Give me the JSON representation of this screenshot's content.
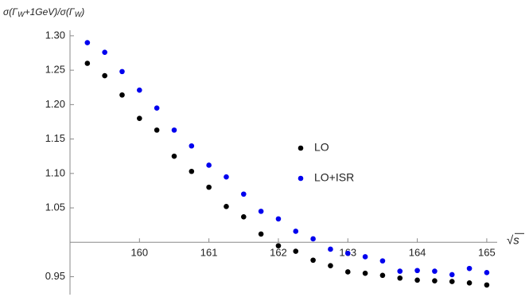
{
  "chart_data": {
    "type": "scatter",
    "ylabel": [
      "σ(Γ",
      "W",
      "+1GeV)/σ(Γ",
      "W",
      ")"
    ],
    "xlabel": "√s",
    "x": [
      159.25,
      159.5,
      159.75,
      160,
      160.25,
      160.5,
      160.75,
      161,
      161.25,
      161.5,
      161.75,
      162,
      162.25,
      162.5,
      162.75,
      163,
      163.25,
      163.5,
      163.75,
      164,
      164.25,
      164.5,
      164.75,
      165
    ],
    "series": [
      {
        "name": "LO",
        "color": "#000000",
        "values": [
          1.26,
          1.242,
          1.214,
          1.18,
          1.163,
          1.125,
          1.103,
          1.08,
          1.052,
          1.037,
          1.012,
          0.995,
          0.987,
          0.974,
          0.966,
          0.957,
          0.955,
          0.952,
          0.948,
          0.945,
          0.944,
          0.943,
          0.941,
          0.938
        ]
      },
      {
        "name": "LO+ISR",
        "color": "#0000ee",
        "values": [
          1.29,
          1.276,
          1.248,
          1.221,
          1.195,
          1.163,
          1.14,
          1.112,
          1.095,
          1.07,
          1.045,
          1.034,
          1.016,
          1.005,
          0.99,
          0.984,
          0.979,
          0.973,
          0.958,
          0.959,
          0.958,
          0.953,
          0.962,
          0.956
        ]
      }
    ],
    "xlim": [
      159,
      165.15
    ],
    "ylim": [
      0.924,
      1.308
    ],
    "xticks": [
      160,
      161,
      162,
      163,
      164,
      165
    ],
    "yticks": [
      {
        "value": 0.95,
        "label": "0.95"
      },
      {
        "value": 1.05,
        "label": "1.05"
      },
      {
        "value": 1.1,
        "label": "1.10"
      },
      {
        "value": 1.15,
        "label": "1.15"
      },
      {
        "value": 1.2,
        "label": "1.20"
      },
      {
        "value": 1.25,
        "label": "1.25"
      },
      {
        "value": 1.3,
        "label": "1.30"
      }
    ],
    "x_axis_position": 1.0,
    "legend": "center-right",
    "grid": false
  }
}
